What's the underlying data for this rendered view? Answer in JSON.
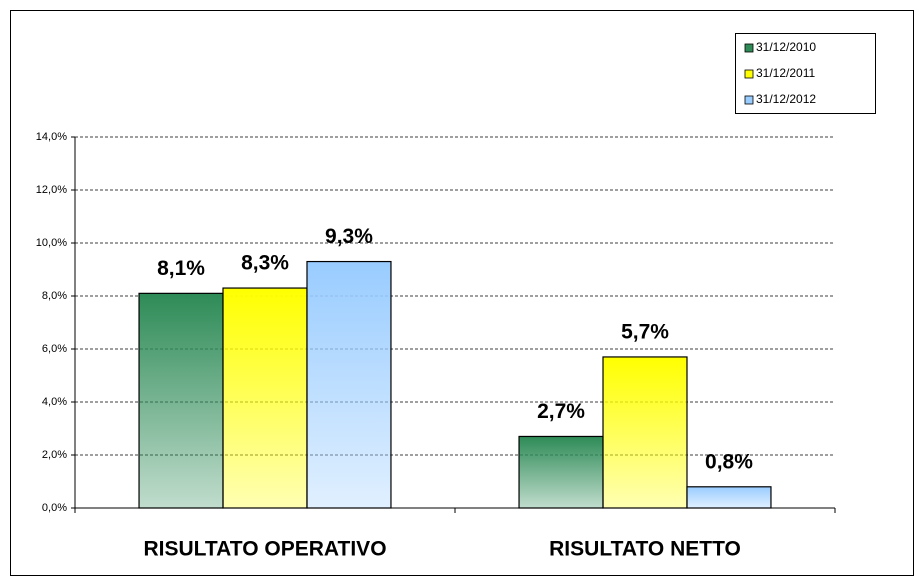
{
  "chart_data": {
    "type": "bar",
    "categories": [
      "RISULTATO OPERATIVO",
      "RISULTATO NETTO"
    ],
    "series": [
      {
        "name": "31/12/2010",
        "color": "#2e8b57",
        "values": [
          8.1,
          2.7
        ],
        "value_labels": [
          "8,1%",
          "2,7%"
        ]
      },
      {
        "name": "31/12/2011",
        "color": "#ffff00",
        "values": [
          8.3,
          5.7
        ],
        "value_labels": [
          "8,3%",
          "5,7%"
        ]
      },
      {
        "name": "31/12/2012",
        "color": "#99ccff",
        "values": [
          9.3,
          0.8
        ],
        "value_labels": [
          "9,3%",
          "0,8%"
        ]
      }
    ],
    "ylim": [
      0,
      14
    ],
    "yticks": [
      {
        "value": 0,
        "label": "0,0%"
      },
      {
        "value": 2,
        "label": "2,0%"
      },
      {
        "value": 4,
        "label": "4,0%"
      },
      {
        "value": 6,
        "label": "6,0%"
      },
      {
        "value": 8,
        "label": "8,0%"
      },
      {
        "value": 10,
        "label": "10,0%"
      },
      {
        "value": 12,
        "label": "12,0%"
      },
      {
        "value": 14,
        "label": "14,0%"
      }
    ],
    "grid": true,
    "legend": "top-right"
  }
}
